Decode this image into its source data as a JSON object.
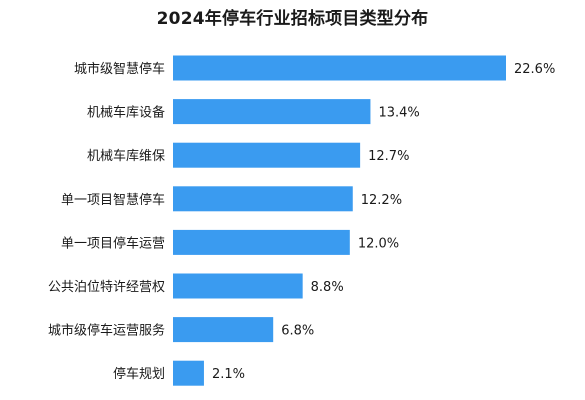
{
  "chart_data": {
    "type": "bar",
    "orientation": "horizontal",
    "title": "2024年停车行业招标项目类型分布",
    "categories": [
      "城市级智慧停车",
      "机械车库设备",
      "机械车库维保",
      "单一项目智慧停车",
      "单一项目停车运营",
      "公共泊位特许经营权",
      "城市级停车运营服务",
      "停车规划"
    ],
    "values": [
      22.6,
      13.4,
      12.7,
      12.2,
      12.0,
      8.8,
      6.8,
      2.1
    ],
    "value_labels": [
      "22.6%",
      "13.4%",
      "12.7%",
      "12.2%",
      "12.0%",
      "8.8%",
      "6.8%",
      "2.1%"
    ],
    "unit": "%",
    "xlim": [
      0,
      22.6
    ],
    "grid": false,
    "legend": "none",
    "bar_color": "#3a9bf0",
    "label_color": "#1a1a1a"
  }
}
